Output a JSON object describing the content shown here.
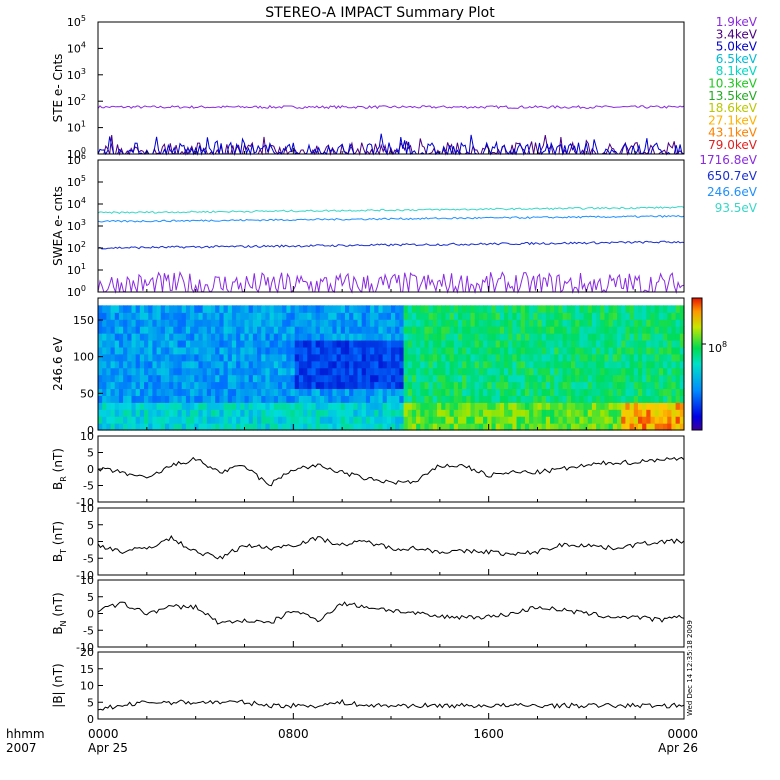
{
  "title": "STEREO-A IMPACT Summary Plot",
  "footer": {
    "row1": "hhmm",
    "row2": "2007",
    "ticks": [
      {
        "hhmm": "0000",
        "date": "Apr 25"
      },
      {
        "hhmm": "0800",
        "date": ""
      },
      {
        "hhmm": "1600",
        "date": ""
      },
      {
        "hhmm": "0000",
        "date": "Apr 26"
      }
    ],
    "stamp": "Wed Dec 14 12:35:18 2009"
  },
  "colors": {
    "ste": [
      "#8a2be2",
      "#4b0082",
      "#0000cd",
      "#00bcd4",
      "#00d8c0",
      "#1ec81e",
      "#22aa22",
      "#b8c800",
      "#ffb000",
      "#ff8000",
      "#e02020"
    ],
    "swea": [
      "#8a2be2",
      "#1a2fd0",
      "#1e90ff",
      "#36d8c8"
    ]
  },
  "chart_data": [
    {
      "type": "line",
      "name": "STE",
      "ylabel": "STE e- Cnts",
      "yscale": "log",
      "ylim": [
        1,
        100000
      ],
      "yticks": [
        "10",
        "10",
        "10",
        "10",
        "10",
        "10"
      ],
      "ytick_exp": [
        "0",
        "1",
        "2",
        "3",
        "4",
        "5"
      ],
      "x_range_hours": [
        0,
        24
      ],
      "series": [
        {
          "name": "1.9keV",
          "level": 60,
          "noise": 0.05
        },
        {
          "name": "3.4keV",
          "level": 1.1,
          "noise": 0.4
        },
        {
          "name": "5.0keV",
          "level": 1.1,
          "noise": 0.4
        },
        {
          "name": "6.5keV"
        },
        {
          "name": "8.1keV"
        },
        {
          "name": "10.3keV"
        },
        {
          "name": "13.5keV"
        },
        {
          "name": "18.6keV"
        },
        {
          "name": "27.1keV"
        },
        {
          "name": "43.1keV"
        },
        {
          "name": "79.0keV"
        }
      ]
    },
    {
      "type": "line",
      "name": "SWEA",
      "ylabel": "SWEA e- cnts",
      "yscale": "log",
      "ylim": [
        1,
        1000000
      ],
      "yticks": [
        "10",
        "10",
        "10",
        "10",
        "10",
        "10",
        "10"
      ],
      "ytick_exp": [
        "0",
        "1",
        "2",
        "3",
        "4",
        "5",
        "6"
      ],
      "x_range_hours": [
        0,
        24
      ],
      "series": [
        {
          "name": "1716.8eV",
          "start": 2,
          "end": 2,
          "noise": 0.6
        },
        {
          "name": "650.7eV",
          "start": 100,
          "end": 190,
          "noise": 0.05
        },
        {
          "name": "246.6eV",
          "start": 1600,
          "end": 2800,
          "noise": 0.04
        },
        {
          "name": "93.5eV",
          "start": 4000,
          "end": 7000,
          "noise": 0.04
        }
      ]
    },
    {
      "type": "heatmap",
      "name": "pitch angle distribution",
      "ylabel": "246.6 eV",
      "ylim": [
        0,
        180
      ],
      "yticks": [
        "0",
        "50",
        "100",
        "150"
      ],
      "colorbar_label": "10",
      "colorbar_exp": "8",
      "x_range_hours": [
        0,
        24
      ]
    },
    {
      "type": "line",
      "name": "BR",
      "ylabel_main": "B",
      "ylabel_sub": "R",
      "ylabel_unit": "(nT)",
      "ylim": [
        -10,
        10
      ],
      "yticks": [
        "-10",
        "-5",
        "0",
        "5",
        "10"
      ],
      "hours": [
        0,
        1,
        2,
        3,
        4,
        5,
        6,
        7,
        8,
        9,
        10,
        11,
        12,
        13,
        14,
        15,
        16,
        17,
        18,
        19,
        20,
        21,
        22,
        23,
        24
      ],
      "values": [
        0,
        -1,
        -3,
        1,
        3,
        -1,
        1,
        -5,
        0,
        1,
        -1,
        -3,
        -4,
        -4,
        1,
        1,
        -2,
        -1,
        -1,
        0,
        1,
        2,
        2,
        3,
        3
      ]
    },
    {
      "type": "line",
      "name": "BT",
      "ylabel_main": "B",
      "ylabel_sub": "T",
      "ylabel_unit": "(nT)",
      "ylim": [
        -10,
        10
      ],
      "yticks": [
        "-10",
        "-5",
        "0",
        "5",
        "10"
      ],
      "hours": [
        0,
        1,
        2,
        3,
        4,
        5,
        6,
        7,
        8,
        9,
        10,
        11,
        12,
        13,
        14,
        15,
        16,
        17,
        18,
        19,
        20,
        21,
        22,
        23,
        24
      ],
      "values": [
        -1,
        -3,
        -2,
        1,
        -3,
        -5,
        -1,
        -2,
        -1,
        1,
        -1,
        0,
        -2,
        -2,
        -3,
        -3,
        -3,
        -4,
        -3,
        -1,
        -1,
        -2,
        -1,
        0,
        0
      ]
    },
    {
      "type": "line",
      "name": "BN",
      "ylabel_main": "B",
      "ylabel_sub": "N",
      "ylabel_unit": "(nT)",
      "ylim": [
        -10,
        10
      ],
      "yticks": [
        "-10",
        "-5",
        "0",
        "5",
        "10"
      ],
      "hours": [
        0,
        1,
        2,
        3,
        4,
        5,
        6,
        7,
        8,
        9,
        10,
        11,
        12,
        13,
        14,
        15,
        16,
        17,
        18,
        19,
        20,
        21,
        22,
        23,
        24
      ],
      "values": [
        1,
        3,
        0,
        2,
        2,
        -3,
        -2,
        -3,
        1,
        -2,
        3,
        2,
        1,
        0,
        -1,
        -1,
        -1,
        0,
        2,
        1,
        0,
        -1,
        -1,
        -2,
        -1
      ]
    },
    {
      "type": "line",
      "name": "B",
      "ylabel_main": "|B|",
      "ylabel_sub": "",
      "ylabel_unit": "(nT)",
      "ylim": [
        0,
        20
      ],
      "yticks": [
        "0",
        "5",
        "10",
        "15",
        "20"
      ],
      "hours": [
        0,
        1,
        2,
        3,
        4,
        5,
        6,
        7,
        8,
        9,
        10,
        11,
        12,
        13,
        14,
        15,
        16,
        17,
        18,
        19,
        20,
        21,
        22,
        23,
        24
      ],
      "values": [
        3,
        4,
        5,
        5,
        5,
        5,
        5,
        4,
        4,
        4,
        5,
        4,
        4,
        4,
        4,
        4,
        4,
        4,
        4,
        4,
        4,
        4,
        4,
        4,
        4
      ]
    }
  ]
}
